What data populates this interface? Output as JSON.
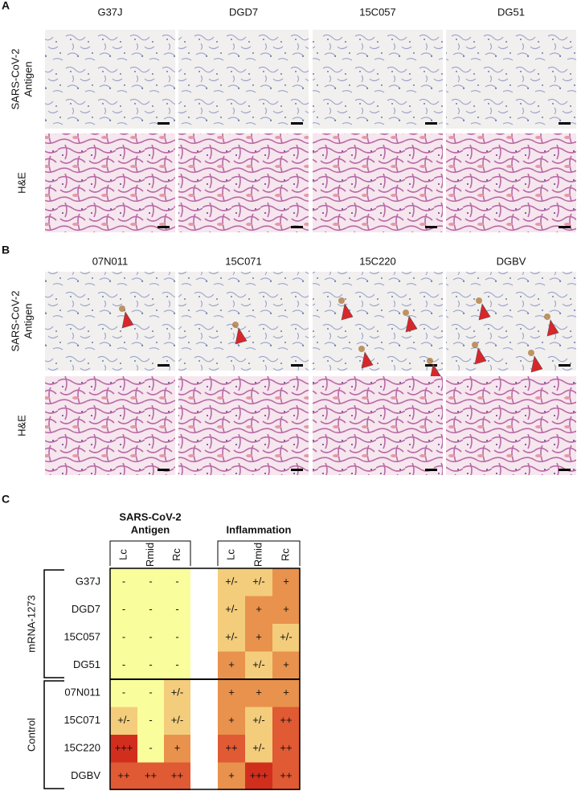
{
  "panels": [
    {
      "label": "A",
      "columns": [
        "G37J",
        "DGD7",
        "15C057",
        "DG51"
      ],
      "rows": [
        [
          "SARS-CoV-2",
          "Antigen"
        ],
        [
          "H&E"
        ]
      ]
    },
    {
      "label": "B",
      "columns": [
        "07N011",
        "15C071",
        "15C220",
        "DGBV"
      ],
      "rows": [
        [
          "SARS-CoV-2",
          "Antigen"
        ],
        [
          "H&E"
        ]
      ]
    }
  ],
  "table": {
    "label": "C",
    "column_groups": [
      {
        "title": [
          "SARS-CoV-2",
          "Antigen"
        ],
        "columns": [
          "Lc",
          "Rmid",
          "Rc"
        ]
      },
      {
        "title": [
          "Inflammation"
        ],
        "columns": [
          "Lc",
          "Rmid",
          "Rc"
        ]
      }
    ],
    "colors": {
      "-": "#fafd9c",
      "+/-": "#f3cd7c",
      "+": "#e8924d",
      "++": "#e05a34",
      "+++": "#d22e1e"
    },
    "row_groups": [
      {
        "name": "mRNA-1273",
        "rows": [
          {
            "label": "G37J",
            "cells": [
              "-",
              "-",
              "-",
              "+/-",
              "+/-",
              "+"
            ]
          },
          {
            "label": "DGD7",
            "cells": [
              "-",
              "-",
              "-",
              "+/-",
              "+",
              "+"
            ]
          },
          {
            "label": "15C057",
            "cells": [
              "-",
              "-",
              "-",
              "+/-",
              "+",
              "+/-"
            ]
          },
          {
            "label": "DG51",
            "cells": [
              "-",
              "-",
              "-",
              "+",
              "+/-",
              "+"
            ]
          }
        ]
      },
      {
        "name": "Control",
        "rows": [
          {
            "label": "07N011",
            "cells": [
              "-",
              "-",
              "+/-",
              "+",
              "+",
              "+"
            ]
          },
          {
            "label": "15C071",
            "cells": [
              "+/-",
              "-",
              "+/-",
              "+",
              "+/-",
              "++"
            ]
          },
          {
            "label": "15C220",
            "cells": [
              "+++",
              "-",
              "+",
              "++",
              "+/-",
              "++"
            ]
          },
          {
            "label": "DGBV",
            "cells": [
              "++",
              "++",
              "++",
              "+",
              "+++",
              "++"
            ]
          }
        ]
      }
    ]
  }
}
